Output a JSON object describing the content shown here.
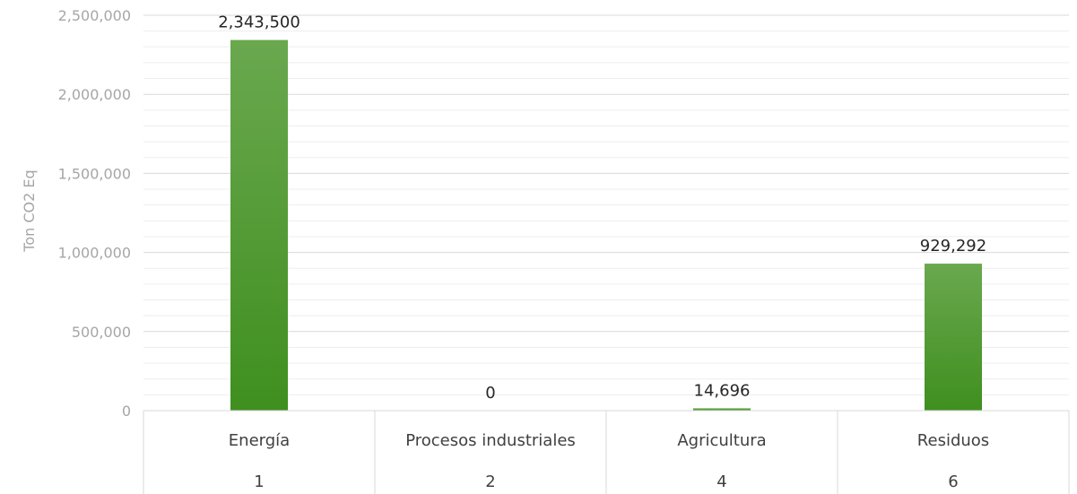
{
  "chart_data": {
    "type": "bar",
    "title": "",
    "xlabel": "",
    "ylabel": "Ton CO2 Eq",
    "ylim": [
      0,
      2500000
    ],
    "yticks": [
      "0",
      "500,000",
      "1,000,000",
      "1,500,000",
      "2,000,000",
      "2,500,000"
    ],
    "categories": [
      "Energía",
      "Procesos industriales",
      "Agricultura",
      "Residuos"
    ],
    "category_codes": [
      "1",
      "2",
      "4",
      "6"
    ],
    "values": [
      2343500,
      0,
      14696,
      929292
    ],
    "value_labels": [
      "2,343,500",
      "0",
      "14,696",
      "929,292"
    ],
    "grid": true,
    "legend": "none",
    "colors": {
      "bar_top": "#6aa84f",
      "bar_bottom": "#3f8f1f",
      "grid": "#d9d9d9",
      "minor_grid": "#ededed"
    }
  }
}
